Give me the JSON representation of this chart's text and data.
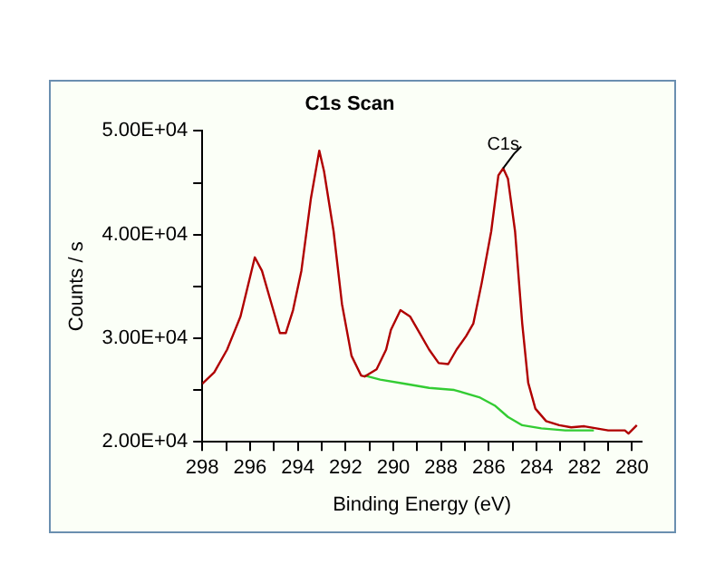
{
  "chart_data": {
    "type": "line",
    "title": "C1s Scan",
    "xlabel": "Binding Energy (eV)",
    "ylabel": "Counts / s",
    "xlim": [
      298,
      279.6
    ],
    "xticks": [
      298,
      {
        "value": 297,
        "label": null
      },
      296,
      {
        "value": 295,
        "label": null
      },
      294,
      {
        "value": 293,
        "label": null
      },
      292,
      {
        "value": 291,
        "label": null
      },
      290,
      {
        "value": 289,
        "label": null
      },
      288,
      {
        "value": 287,
        "label": null
      },
      286,
      {
        "value": 285,
        "label": null
      },
      284,
      {
        "value": 283,
        "label": null
      },
      282,
      {
        "value": 281,
        "label": null
      },
      280
    ],
    "ylim": [
      20000,
      50000
    ],
    "yticks": [
      {
        "value": 20000,
        "label": "2.00E+04"
      },
      {
        "value": 25000,
        "label": null
      },
      {
        "value": 30000,
        "label": "3.00E+04"
      },
      {
        "value": 35000,
        "label": null
      },
      {
        "value": 40000,
        "label": "4.00E+04"
      },
      {
        "value": 45000,
        "label": null
      },
      {
        "value": 50000,
        "label": "5.00E+04"
      }
    ],
    "grid": false,
    "legend": false,
    "marker": "none",
    "line_style": "solid",
    "annotations": [
      {
        "text": "C1s",
        "x": 285.4,
        "y": 46400
      }
    ],
    "series": [
      {
        "color": "#b00000",
        "x": [
          298,
          297.5,
          296.96,
          296.4,
          295.8,
          295.5,
          295.1,
          294.75,
          294.5,
          294.2,
          293.85,
          293.45,
          293.1,
          292.9,
          292.5,
          292.15,
          291.75,
          291.35,
          291.2,
          290.7,
          290.3,
          290.1,
          289.7,
          289.3,
          288.9,
          288.5,
          288.1,
          287.7,
          287.35,
          286.95,
          286.65,
          286.3,
          285.9,
          285.6,
          285.4,
          285.2,
          284.9,
          284.6,
          284.35,
          284.05,
          283.6,
          283.05,
          282.55,
          282,
          281.5,
          281,
          280.3,
          280.15,
          279.8
        ],
        "values": [
          25600,
          26700,
          28900,
          32100,
          37800,
          36500,
          33300,
          30500,
          30500,
          32700,
          36500,
          43500,
          48100,
          46100,
          40300,
          33300,
          28300,
          26400,
          26300,
          27000,
          28900,
          30800,
          32700,
          32100,
          30500,
          28900,
          27600,
          27500,
          28900,
          30200,
          31400,
          35300,
          40300,
          45700,
          46400,
          45400,
          40300,
          31400,
          25700,
          23200,
          22000,
          21600,
          21400,
          21500,
          21300,
          21100,
          21100,
          20800,
          21600
        ]
      },
      {
        "color": "#33cc33",
        "x": [
          291.2,
          290.55,
          289.5,
          288.5,
          287.45,
          286.4,
          285.75,
          285.2,
          284.6,
          283.8,
          282.8,
          281.6
        ],
        "values": [
          26400,
          26000,
          25600,
          25200,
          25000,
          24300,
          23500,
          22400,
          21600,
          21300,
          21100,
          21100
        ]
      }
    ]
  }
}
